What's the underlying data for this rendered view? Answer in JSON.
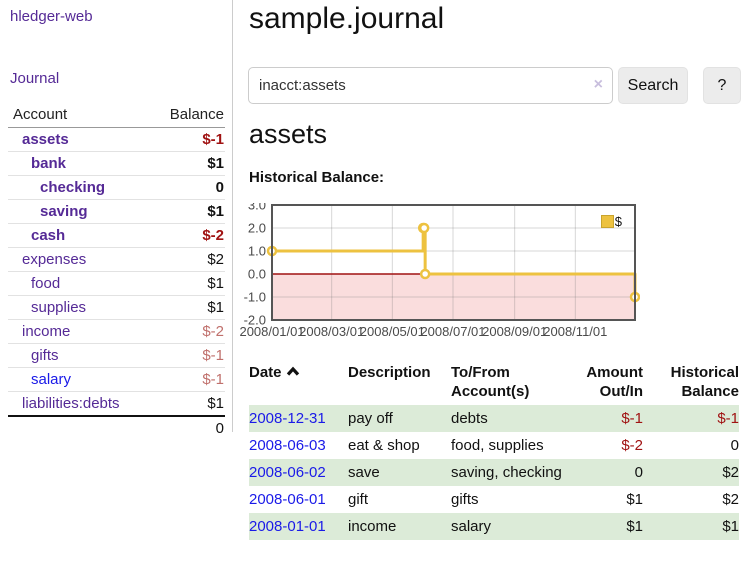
{
  "app": {
    "brand": "hledger-web"
  },
  "nav": {
    "journal": "Journal"
  },
  "sidebar": {
    "headers": {
      "account": "Account",
      "balance": "Balance"
    },
    "accounts": [
      {
        "name": "assets",
        "balance": "$-1",
        "indent": 1,
        "bold": true,
        "balance_style": "negative-strong"
      },
      {
        "name": "bank",
        "balance": "$1",
        "indent": 2,
        "bold": true,
        "balance_style": "normal"
      },
      {
        "name": "checking",
        "balance": "0",
        "indent": 3,
        "bold": true,
        "balance_style": "normal"
      },
      {
        "name": "saving",
        "balance": "$1",
        "indent": 3,
        "bold": true,
        "balance_style": "normal"
      },
      {
        "name": "cash",
        "balance": "$-2",
        "indent": 2,
        "bold": true,
        "balance_style": "negative-strong"
      },
      {
        "name": "expenses",
        "balance": "$2",
        "indent": 1,
        "bold": false,
        "balance_style": "normal"
      },
      {
        "name": "food",
        "balance": "$1",
        "indent": 2,
        "bold": false,
        "balance_style": "normal"
      },
      {
        "name": "supplies",
        "balance": "$1",
        "indent": 2,
        "bold": false,
        "balance_style": "normal"
      },
      {
        "name": "income",
        "balance": "$-2",
        "indent": 1,
        "bold": false,
        "balance_style": "negative-soft"
      },
      {
        "name": "gifts",
        "balance": "$-1",
        "indent": 2,
        "bold": false,
        "balance_style": "negative-soft"
      },
      {
        "name": "salary",
        "balance": "$-1",
        "indent": 2,
        "bold": false,
        "balance_style": "negative-soft",
        "link_style": "blue"
      },
      {
        "name": "liabilities:debts",
        "balance": "$1",
        "indent": 1,
        "bold": false,
        "balance_style": "normal"
      }
    ],
    "total": "0"
  },
  "main": {
    "title": "sample.journal",
    "search": {
      "value": "inacct:assets",
      "clear_label": "×",
      "button": "Search",
      "help": "?"
    },
    "account_heading": "assets",
    "chart_label": "Historical Balance:"
  },
  "chart_data": {
    "type": "line",
    "title": "Historical Balance",
    "series": [
      {
        "name": "$",
        "style": "step-after, gold line with open circle markers",
        "color": "#edc240",
        "points": [
          {
            "date": "2008-01-01",
            "value": 1
          },
          {
            "date": "2008-06-01",
            "value": 2
          },
          {
            "date": "2008-06-02",
            "value": 2
          },
          {
            "date": "2008-06-03",
            "value": 0
          },
          {
            "date": "2008-12-31",
            "value": -1
          }
        ]
      }
    ],
    "x_range": [
      "2008-01-01",
      "2008-12-31"
    ],
    "y_range": [
      -2,
      3
    ],
    "xtick_labels": [
      "2008/01/01",
      "2008/03/01",
      "2008/05/01",
      "2008/07/01",
      "2008/09/01",
      "2008/11/01"
    ],
    "ytick_labels": [
      "3.0",
      "2.0",
      "1.0",
      "0.0",
      "-1.0",
      "-2.0"
    ],
    "legend": {
      "label": "$",
      "position": "top-right"
    },
    "grid": true,
    "negative_region_fill": "#fadddd",
    "zero_line_color": "#a01212"
  },
  "register": {
    "headers": {
      "date": "Date",
      "description": "Description",
      "account": "To/From Account(s)",
      "amount": "Amount Out/In",
      "balance": "Historical Balance"
    },
    "rows": [
      {
        "date": "2008-12-31",
        "description": "pay off",
        "account": "debts",
        "amount": "$-1",
        "balance": "$-1"
      },
      {
        "date": "2008-06-03",
        "description": "eat & shop",
        "account": "food, supplies",
        "amount": "$-2",
        "balance": "0"
      },
      {
        "date": "2008-06-02",
        "description": "save",
        "account": "saving, checking",
        "amount": "0",
        "balance": "$2"
      },
      {
        "date": "2008-06-01",
        "description": "gift",
        "account": "gifts",
        "amount": "$1",
        "balance": "$2"
      },
      {
        "date": "2008-01-01",
        "description": "income",
        "account": "salary",
        "amount": "$1",
        "balance": "$1"
      }
    ]
  },
  "colors": {
    "purple_link": "#552a96",
    "blue_link": "#1a1ae8",
    "negative_strong": "#a01212",
    "negative_soft": "#c0706c",
    "series_gold": "#edc240",
    "negative_region_fill": "#fadddd",
    "zero_line": "#a01212",
    "row_green": "#dcebd8",
    "button_bg": "#ececec"
  }
}
